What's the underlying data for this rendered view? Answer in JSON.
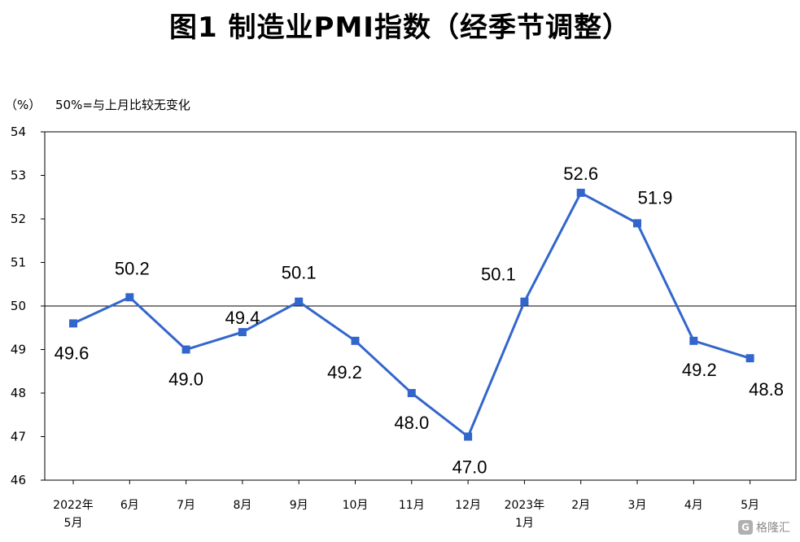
{
  "title": "图1 制造业PMI指数（经季节调整）",
  "unit": "（%）",
  "note": "50%=与上月比较无变化",
  "watermark": "格隆汇",
  "colors": {
    "line": "#3366cc",
    "axis": "#000000"
  },
  "chart_data": {
    "type": "line",
    "categories": [
      "2022年\n5月",
      "6月",
      "7月",
      "8月",
      "9月",
      "10月",
      "11月",
      "12月",
      "2023年\n1月",
      "2月",
      "3月",
      "4月",
      "5月"
    ],
    "series": [
      {
        "values": [
          49.6,
          50.2,
          49.0,
          49.4,
          50.1,
          49.2,
          48.0,
          47.0,
          50.1,
          52.6,
          51.9,
          49.2,
          48.8
        ]
      }
    ],
    "data_labels": [
      "49.6",
      "50.2",
      "49.0",
      "49.4",
      "50.1",
      "49.2",
      "48.0",
      "47.0",
      "50.1",
      "52.6",
      "51.9",
      "49.2",
      "48.8"
    ],
    "ylim": [
      46,
      54
    ],
    "yticks": [
      "46",
      "47",
      "48",
      "49",
      "50",
      "51",
      "52",
      "53",
      "54"
    ],
    "reference_line": 50,
    "grid": false
  }
}
